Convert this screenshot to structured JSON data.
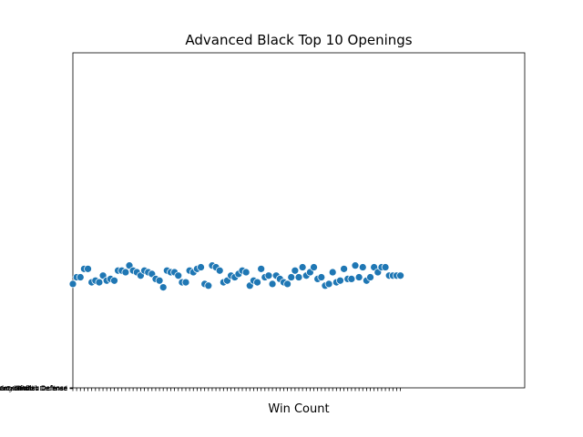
{
  "chart_data": {
    "type": "scatter",
    "title": "Advanced Black Top 10 Openings",
    "xlabel": "Win Count",
    "ylabel": "",
    "x_tick_count": 88,
    "xlim": [
      0,
      120
    ],
    "ylim": [
      0,
      10
    ],
    "y_tick_labels": [
      "Sicilian Defense",
      "French Defense",
      "Caro-Kann Defense",
      "Scandinavian Defense",
      "King's Indian Defense",
      "Queen's Gambit Declined",
      "Slav Defense",
      "Nimzo-Indian Defense",
      "Pirc Defense",
      "Dutch Defense"
    ],
    "point_color": "#1f77b4",
    "series": [
      {
        "name": "openings",
        "x": [
          0,
          1,
          2,
          3,
          4,
          5,
          6,
          7,
          8,
          9,
          10,
          11,
          12,
          13,
          14,
          15,
          16,
          17,
          18,
          19,
          20,
          21,
          22,
          23,
          24,
          25,
          26,
          27,
          28,
          29,
          30,
          31,
          32,
          33,
          34,
          35,
          36,
          37,
          38,
          39,
          40,
          41,
          42,
          43,
          44,
          45,
          46,
          47,
          48,
          49,
          50,
          51,
          52,
          53,
          54,
          55,
          56,
          57,
          58,
          59,
          60,
          61,
          62,
          63,
          64,
          65,
          66,
          67,
          68,
          69,
          70,
          71,
          72,
          73,
          74,
          75,
          76,
          77,
          78,
          79,
          80,
          81,
          82,
          83,
          84,
          85,
          86,
          87
        ],
        "y": [
          3.1,
          3.3,
          3.3,
          3.55,
          3.55,
          3.15,
          3.2,
          3.15,
          3.35,
          3.2,
          3.25,
          3.2,
          3.5,
          3.5,
          3.45,
          3.65,
          3.5,
          3.45,
          3.35,
          3.5,
          3.45,
          3.4,
          3.25,
          3.2,
          3.0,
          3.5,
          3.45,
          3.45,
          3.35,
          3.15,
          3.15,
          3.5,
          3.45,
          3.55,
          3.6,
          3.1,
          3.05,
          3.65,
          3.6,
          3.5,
          3.15,
          3.2,
          3.35,
          3.3,
          3.4,
          3.5,
          3.45,
          3.05,
          3.2,
          3.15,
          3.55,
          3.3,
          3.35,
          3.1,
          3.35,
          3.25,
          3.15,
          3.1,
          3.3,
          3.5,
          3.3,
          3.6,
          3.35,
          3.45,
          3.6,
          3.25,
          3.3,
          3.05,
          3.1,
          3.45,
          3.15,
          3.2,
          3.55,
          3.25,
          3.25,
          3.65,
          3.3,
          3.6,
          3.2,
          3.3,
          3.6,
          3.45,
          3.6,
          3.6,
          3.35,
          3.35,
          3.35,
          3.35
        ]
      }
    ]
  }
}
